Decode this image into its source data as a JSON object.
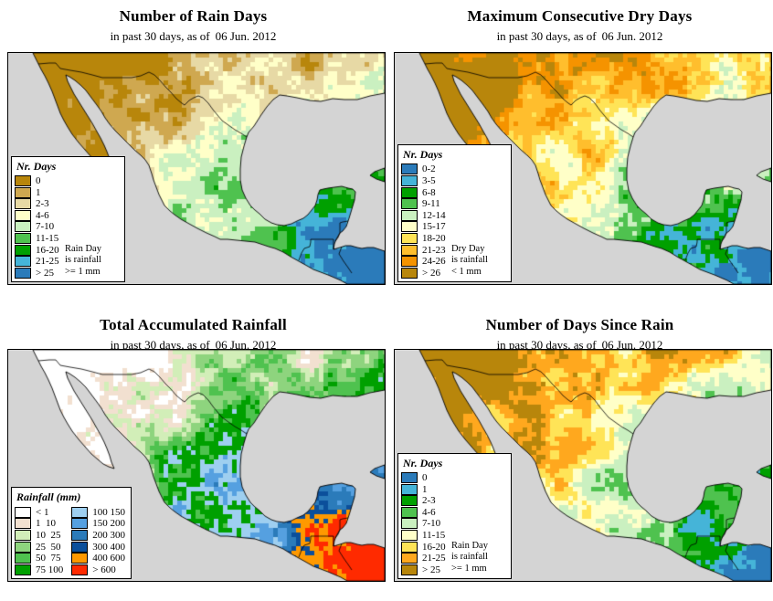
{
  "page": {
    "background": "#ffffff",
    "ocean_color": "#d4d4d4",
    "frame_color": "#000000"
  },
  "panels": [
    {
      "id": "rain-days",
      "title": "Number of Rain Days",
      "subtitle": "in past 30 days, as of",
      "date": "06 Jun. 2012",
      "legend": {
        "title": "Nr. Days",
        "columns": 1,
        "items": [
          {
            "label": "0",
            "color": "#b8860b"
          },
          {
            "label": "1",
            "color": "#cfa850"
          },
          {
            "label": "2-3",
            "color": "#e7d9a5"
          },
          {
            "label": "4-6",
            "color": "#ffffc8"
          },
          {
            "label": "7-10",
            "color": "#caf0c0"
          },
          {
            "label": "11-15",
            "color": "#4fc24f"
          },
          {
            "label": "16-20",
            "color": "#00a000"
          },
          {
            "label": "21-25",
            "color": "#45b4d8"
          },
          {
            "label": "> 25",
            "color": "#2b7bba"
          }
        ],
        "note": [
          "Rain Day",
          "is rainfall",
          ">= 1 mm"
        ]
      }
    },
    {
      "id": "dry-days",
      "title": "Maximum Consecutive Dry Days",
      "subtitle": "in past 30 days, as of",
      "date": "06 Jun. 2012",
      "legend": {
        "title": "Nr. Days",
        "columns": 1,
        "items": [
          {
            "label": "0-2",
            "color": "#2b7bba"
          },
          {
            "label": "3-5",
            "color": "#45b4d8"
          },
          {
            "label": "6-8",
            "color": "#00a000"
          },
          {
            "label": "9-11",
            "color": "#4fc24f"
          },
          {
            "label": "12-14",
            "color": "#caf0c0"
          },
          {
            "label": "15-17",
            "color": "#ffffc8"
          },
          {
            "label": "18-20",
            "color": "#ffe457"
          },
          {
            "label": "21-23",
            "color": "#ffbe2d"
          },
          {
            "label": "24-26",
            "color": "#f59300"
          },
          {
            "label": "> 26",
            "color": "#b8860b"
          }
        ],
        "note": [
          "Dry Day",
          "is rainfall",
          "< 1 mm"
        ]
      }
    },
    {
      "id": "rainfall",
      "title": "Total Accumulated Rainfall",
      "subtitle": "in past 30 days, as of",
      "date": "06 Jun. 2012",
      "legend": {
        "title": "Rainfall (mm)",
        "columns": 2,
        "items": [
          {
            "label": "< 1",
            "color": "#ffffff"
          },
          {
            "label": "1  10",
            "color": "#f2e0d0"
          },
          {
            "label": "10  25",
            "color": "#d2eeb8"
          },
          {
            "label": "25  50",
            "color": "#8ed47e"
          },
          {
            "label": "50  75",
            "color": "#4fc24f"
          },
          {
            "label": "75 100",
            "color": "#00a000"
          },
          {
            "label": "100 150",
            "color": "#9ecff0"
          },
          {
            "label": "150 200",
            "color": "#55a0e0"
          },
          {
            "label": "200 300",
            "color": "#2b7bba"
          },
          {
            "label": "300 400",
            "color": "#0b4f9b"
          },
          {
            "label": "400 600",
            "color": "#ff9900"
          },
          {
            "label": "> 600",
            "color": "#ff2a00"
          }
        ],
        "note": null
      }
    },
    {
      "id": "days-since-rain",
      "title": "Number of Days Since Rain",
      "subtitle": "in past 30 days, as of",
      "date": "06 Jun. 2012",
      "legend": {
        "title": "Nr. Days",
        "columns": 1,
        "items": [
          {
            "label": "0",
            "color": "#2b7bba"
          },
          {
            "label": "1",
            "color": "#45b4d8"
          },
          {
            "label": "2-3",
            "color": "#00a000"
          },
          {
            "label": "4-6",
            "color": "#4fc24f"
          },
          {
            "label": "7-10",
            "color": "#caf0c0"
          },
          {
            "label": "11-15",
            "color": "#ffffc8"
          },
          {
            "label": "16-20",
            "color": "#ffe457"
          },
          {
            "label": "21-25",
            "color": "#ffa81e"
          },
          {
            "label": "> 25",
            "color": "#b8860b"
          }
        ],
        "note": [
          "Rain Day",
          "is rainfall",
          ">= 1 mm"
        ]
      }
    }
  ]
}
